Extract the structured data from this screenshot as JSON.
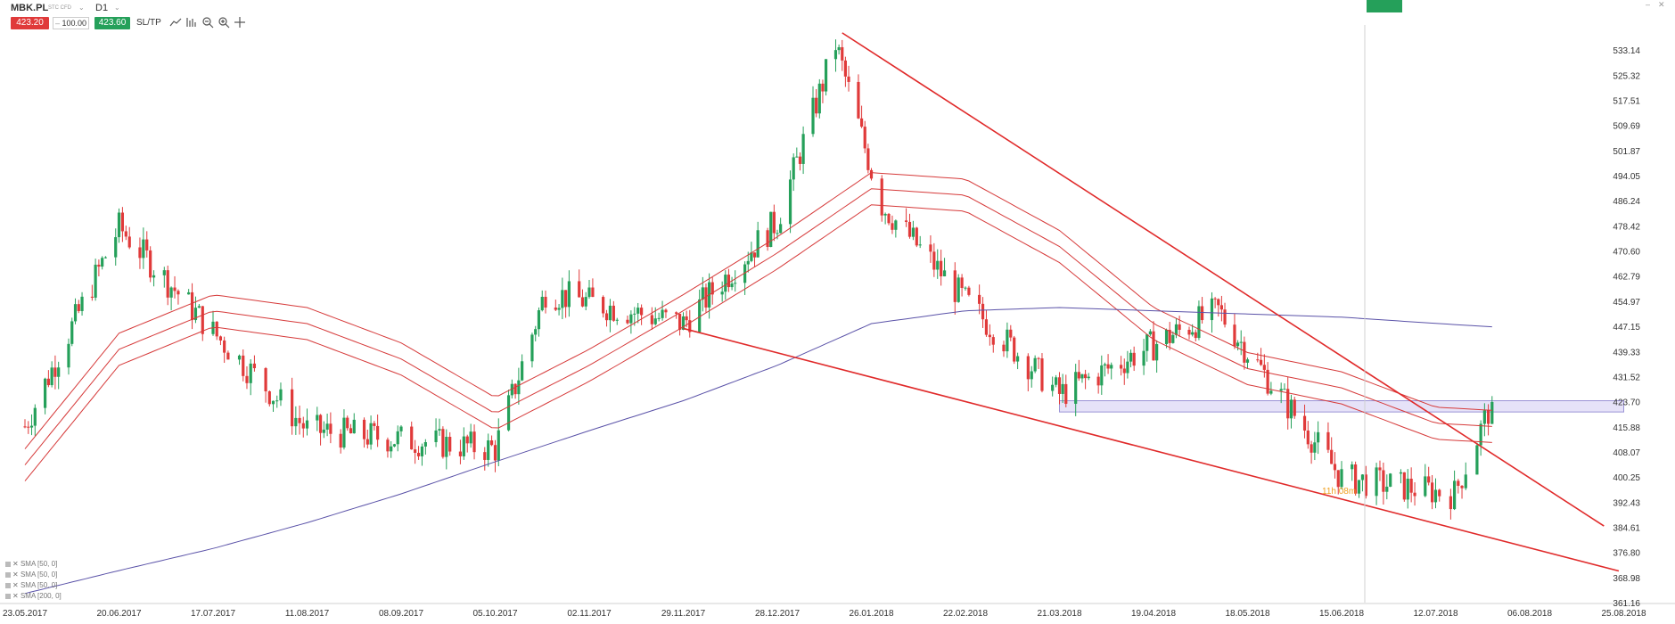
{
  "header": {
    "symbol": "MBK.PL",
    "symbol_sub": "STC CFD",
    "timeframe": "D1",
    "sell_price": "423.20",
    "volume": "100.00",
    "buy_price": "423.60",
    "sltp_label": "SL/TP"
  },
  "legend": [
    {
      "label": "SMA [50, 0]"
    },
    {
      "label": "SMA [50, 0]"
    },
    {
      "label": "SMA [50, 0]"
    },
    {
      "label": "SMA [200, 0]"
    }
  ],
  "countdown": "11h 08m",
  "colors": {
    "bull": "#25a05a",
    "bear": "#e03a3a",
    "sma_band": "#d63a3a",
    "sma200": "#5a52a8",
    "trendline": "#e02a2a",
    "zone_fill": "#e6e2f8",
    "zone_stroke": "#9b93d6"
  },
  "chart_data": {
    "type": "candlestick",
    "ylim": [
      361.16,
      540.96
    ],
    "y_ticks": [
      "533.14",
      "525.32",
      "517.51",
      "509.69",
      "501.87",
      "494.05",
      "486.24",
      "478.42",
      "470.60",
      "462.79",
      "454.97",
      "447.15",
      "439.33",
      "431.52",
      "423.70",
      "415.88",
      "408.07",
      "400.25",
      "392.43",
      "384.61",
      "376.80",
      "368.98",
      "361.16"
    ],
    "x_ticks": [
      "23.05.2017",
      "20.06.2017",
      "17.07.2017",
      "11.08.2017",
      "08.09.2017",
      "05.10.2017",
      "02.11.2017",
      "29.11.2017",
      "28.12.2017",
      "26.01.2018",
      "22.02.2018",
      "21.03.2018",
      "19.04.2018",
      "18.05.2018",
      "15.06.2018",
      "12.07.2018",
      "06.08.2018",
      "25.08.2018"
    ],
    "key_points": [
      {
        "date": "23.05.2017",
        "close": 416
      },
      {
        "date": "20.06.2017",
        "close": 478
      },
      {
        "date": "11.08.2017",
        "close": 415
      },
      {
        "date": "05.10.2017",
        "close": 409
      },
      {
        "date": "20.10.2017",
        "close": 458
      },
      {
        "date": "29.11.2017",
        "close": 448
      },
      {
        "date": "28.12.2017",
        "close": 480
      },
      {
        "date": "15.01.2018",
        "close": 535
      },
      {
        "date": "29.01.2018",
        "close": 485
      },
      {
        "date": "22.02.2018",
        "close": 455
      },
      {
        "date": "21.03.2018",
        "close": 426
      },
      {
        "date": "09.05.2018",
        "close": 452
      },
      {
        "date": "15.06.2018",
        "close": 400
      },
      {
        "date": "17.07.2018",
        "close": 395
      },
      {
        "date": "27.07.2018",
        "close": 423.6
      }
    ],
    "sma_band_mid": [
      {
        "date": "23.05.2017",
        "value": 404
      },
      {
        "date": "20.06.2017",
        "value": 440
      },
      {
        "date": "17.07.2017",
        "value": 452
      },
      {
        "date": "11.08.2017",
        "value": 448
      },
      {
        "date": "08.09.2017",
        "value": 437
      },
      {
        "date": "05.10.2017",
        "value": 420
      },
      {
        "date": "02.11.2017",
        "value": 435
      },
      {
        "date": "29.11.2017",
        "value": 452
      },
      {
        "date": "28.12.2017",
        "value": 470
      },
      {
        "date": "26.01.2018",
        "value": 490
      },
      {
        "date": "22.02.2018",
        "value": 488
      },
      {
        "date": "21.03.2018",
        "value": 472
      },
      {
        "date": "19.04.2018",
        "value": 448
      },
      {
        "date": "18.05.2018",
        "value": 434
      },
      {
        "date": "15.06.2018",
        "value": 428
      },
      {
        "date": "12.07.2018",
        "value": 417
      },
      {
        "date": "27.07.2018",
        "value": 416
      }
    ],
    "sma_200": [
      {
        "date": "23.05.2017",
        "value": 364
      },
      {
        "date": "17.07.2017",
        "value": 378
      },
      {
        "date": "08.09.2017",
        "value": 395
      },
      {
        "date": "05.10.2017",
        "value": 405
      },
      {
        "date": "29.11.2017",
        "value": 424
      },
      {
        "date": "28.12.2017",
        "value": 435
      },
      {
        "date": "26.01.2018",
        "value": 448
      },
      {
        "date": "22.02.2018",
        "value": 452
      },
      {
        "date": "21.03.2018",
        "value": 453
      },
      {
        "date": "18.05.2018",
        "value": 451
      },
      {
        "date": "15.06.2018",
        "value": 450
      },
      {
        "date": "27.07.2018",
        "value": 447
      }
    ],
    "support_zone": {
      "from": "21.03.2018",
      "to": "25.08.2018",
      "low": 420.5,
      "high": 424.0
    },
    "trendlines": [
      {
        "from": {
          "date": "17.01.2018",
          "value": 538.5
        },
        "to": {
          "date": "21.08.2018",
          "value": 385
        }
      },
      {
        "from": {
          "date": "29.11.2017",
          "value": 446.5
        },
        "to": {
          "date": "24.08.2018",
          "value": 371
        }
      }
    ]
  }
}
